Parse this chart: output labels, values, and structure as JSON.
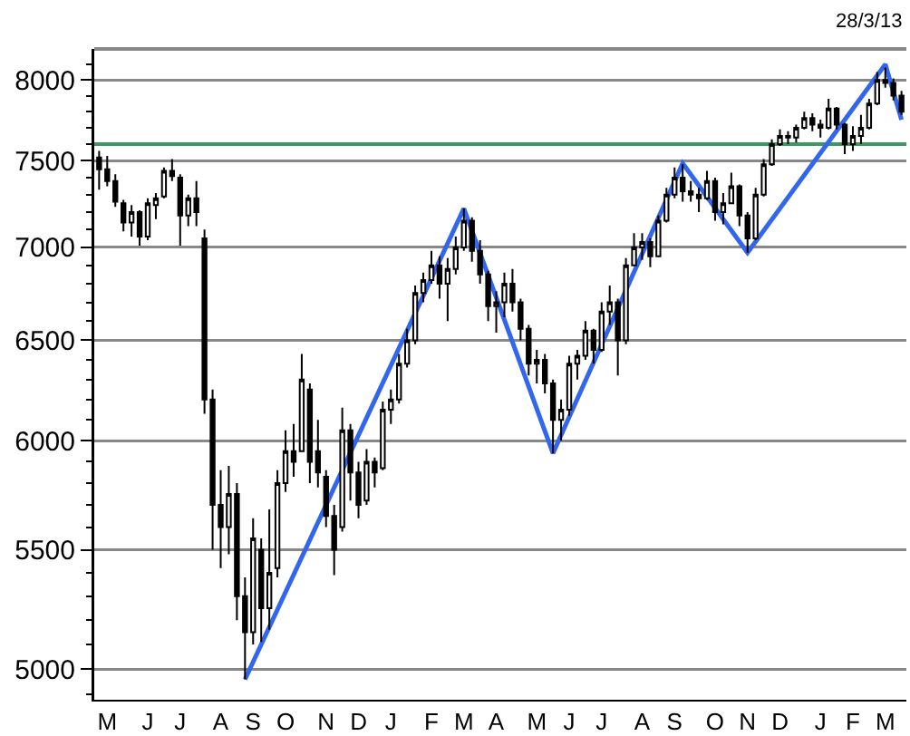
{
  "chart_data": {
    "type": "candlestick",
    "log": true,
    "grid": "y",
    "color": "#000000",
    "annotations": [
      "28/3/13"
    ],
    "categories": [
      null,
      "M",
      null,
      null,
      null,
      null,
      "J",
      null,
      null,
      null,
      "J",
      null,
      null,
      null,
      null,
      "A",
      null,
      null,
      null,
      "S",
      null,
      null,
      null,
      "O",
      null,
      null,
      null,
      null,
      "N",
      null,
      null,
      null,
      "D",
      null,
      null,
      null,
      "J",
      null,
      null,
      null,
      null,
      "F",
      null,
      null,
      null,
      "M",
      null,
      null,
      null,
      "A",
      null,
      null,
      null,
      null,
      "M",
      null,
      null,
      null,
      "J",
      null,
      null,
      null,
      "J",
      null,
      null,
      null,
      null,
      "A",
      null,
      null,
      null,
      "S",
      null,
      null,
      null,
      null,
      "O",
      null,
      null,
      null,
      "N",
      null,
      null,
      null,
      "D",
      null,
      null,
      null,
      null,
      "J",
      null,
      null,
      null,
      "F",
      null,
      null,
      null,
      "M",
      null,
      null
    ],
    "ylim": [
      4880,
      8200
    ],
    "yticks": [
      {
        "value": 4900,
        "label": null
      },
      5000,
      {
        "value": 5100,
        "label": null
      },
      {
        "value": 5200,
        "label": null
      },
      {
        "value": 5300,
        "label": null
      },
      {
        "value": 5400,
        "label": null
      },
      5500,
      {
        "value": 5600,
        "label": null
      },
      {
        "value": 5700,
        "label": null
      },
      {
        "value": 5800,
        "label": null
      },
      {
        "value": 5900,
        "label": null
      },
      6000,
      {
        "value": 6100,
        "label": null
      },
      {
        "value": 6200,
        "label": null
      },
      {
        "value": 6300,
        "label": null
      },
      {
        "value": 6400,
        "label": null
      },
      6500,
      {
        "value": 6600,
        "label": null
      },
      {
        "value": 6700,
        "label": null
      },
      {
        "value": 6800,
        "label": null
      },
      {
        "value": 6900,
        "label": null
      },
      7000,
      {
        "value": 7100,
        "label": null
      },
      {
        "value": 7200,
        "label": null
      },
      {
        "value": 7300,
        "label": null
      },
      {
        "value": 7400,
        "label": null
      },
      7500,
      {
        "value": 7600,
        "label": null
      },
      {
        "value": 7700,
        "label": null
      },
      {
        "value": 7800,
        "label": null
      },
      {
        "value": 7900,
        "label": null
      },
      8000,
      {
        "value": 8100,
        "label": null
      }
    ],
    "ref_lines": [
      {
        "axis": "y",
        "value": 7600,
        "color": "#3b9a5e"
      }
    ],
    "ohlc": [
      [
        7520,
        7560,
        7330,
        7450
      ],
      [
        7450,
        7530,
        7350,
        7380
      ],
      [
        7380,
        7420,
        7230,
        7260
      ],
      [
        7250,
        7270,
        7090,
        7140
      ],
      [
        7140,
        7240,
        7060,
        7200
      ],
      [
        7200,
        7210,
        7010,
        7060
      ],
      [
        7060,
        7280,
        7040,
        7250
      ],
      [
        7240,
        7310,
        7160,
        7280
      ],
      [
        7290,
        7460,
        7280,
        7440
      ],
      [
        7440,
        7510,
        7380,
        7410
      ],
      [
        7400,
        7420,
        7010,
        7180
      ],
      [
        7180,
        7300,
        7120,
        7280
      ],
      [
        7280,
        7380,
        7120,
        7200
      ],
      [
        7050,
        7100,
        6130,
        6200
      ],
      [
        6200,
        6250,
        5500,
        5700
      ],
      [
        5700,
        5860,
        5420,
        5600
      ],
      [
        5600,
        5880,
        5480,
        5750
      ],
      [
        5750,
        5800,
        5200,
        5300
      ],
      [
        5300,
        5380,
        4960,
        5150
      ],
      [
        5150,
        5640,
        5100,
        5550
      ],
      [
        5500,
        5550,
        5110,
        5250
      ],
      [
        5250,
        5680,
        5160,
        5400
      ],
      [
        5420,
        5860,
        5380,
        5800
      ],
      [
        5800,
        6050,
        5760,
        5950
      ],
      [
        5950,
        6080,
        5830,
        5900
      ],
      [
        5950,
        6430,
        5950,
        6300
      ],
      [
        6250,
        6280,
        5800,
        5900
      ],
      [
        5950,
        6100,
        5780,
        5850
      ],
      [
        5830,
        5860,
        5600,
        5650
      ],
      [
        5650,
        5700,
        5390,
        5500
      ],
      [
        5600,
        6160,
        5580,
        6050
      ],
      [
        6050,
        6080,
        5720,
        5850
      ],
      [
        5850,
        5900,
        5640,
        5700
      ],
      [
        5720,
        5960,
        5700,
        5900
      ],
      [
        5900,
        5920,
        5780,
        5850
      ],
      [
        5870,
        6190,
        5860,
        6150
      ],
      [
        6150,
        6250,
        6080,
        6200
      ],
      [
        6200,
        6430,
        6180,
        6380
      ],
      [
        6380,
        6560,
        6360,
        6500
      ],
      [
        6500,
        6790,
        6480,
        6750
      ],
      [
        6750,
        6860,
        6700,
        6820
      ],
      [
        6820,
        6980,
        6800,
        6900
      ],
      [
        6900,
        6950,
        6720,
        6800
      ],
      [
        6800,
        6940,
        6600,
        6880
      ],
      [
        6880,
        7060,
        6850,
        7000
      ],
      [
        7000,
        7220,
        6980,
        7150
      ],
      [
        7150,
        7170,
        6920,
        6980
      ],
      [
        6980,
        7040,
        6800,
        6850
      ],
      [
        6850,
        6870,
        6600,
        6680
      ],
      [
        6680,
        6760,
        6540,
        6700
      ],
      [
        6700,
        6860,
        6620,
        6800
      ],
      [
        6800,
        6880,
        6650,
        6700
      ],
      [
        6700,
        6720,
        6500,
        6560
      ],
      [
        6560,
        6580,
        6320,
        6380
      ],
      [
        6380,
        6450,
        6280,
        6400
      ],
      [
        6400,
        6430,
        6230,
        6280
      ],
      [
        6280,
        6300,
        5940,
        6100
      ],
      [
        6100,
        6200,
        6000,
        6150
      ],
      [
        6150,
        6420,
        6120,
        6380
      ],
      [
        6380,
        6450,
        6300,
        6420
      ],
      [
        6420,
        6600,
        6400,
        6550
      ],
      [
        6550,
        6560,
        6380,
        6450
      ],
      [
        6450,
        6700,
        6440,
        6650
      ],
      [
        6650,
        6790,
        6580,
        6700
      ],
      [
        6700,
        6720,
        6320,
        6500
      ],
      [
        6500,
        6940,
        6480,
        6900
      ],
      [
        6900,
        7080,
        6900,
        7000
      ],
      [
        7000,
        7080,
        6930,
        7030
      ],
      [
        7030,
        7050,
        6890,
        6950
      ],
      [
        6950,
        7180,
        6950,
        7150
      ],
      [
        7150,
        7340,
        7140,
        7300
      ],
      [
        7300,
        7460,
        7280,
        7400
      ],
      [
        7400,
        7480,
        7260,
        7320
      ],
      [
        7320,
        7380,
        7260,
        7300
      ],
      [
        7300,
        7340,
        7200,
        7280
      ],
      [
        7280,
        7440,
        7270,
        7380
      ],
      [
        7380,
        7400,
        7150,
        7200
      ],
      [
        7200,
        7310,
        7130,
        7250
      ],
      [
        7250,
        7430,
        7250,
        7350
      ],
      [
        7350,
        7360,
        7120,
        7180
      ],
      [
        7180,
        7200,
        6970,
        7050
      ],
      [
        7050,
        7340,
        7040,
        7300
      ],
      [
        7300,
        7510,
        7290,
        7480
      ],
      [
        7480,
        7630,
        7470,
        7600
      ],
      [
        7600,
        7690,
        7590,
        7650
      ],
      [
        7650,
        7680,
        7600,
        7640
      ],
      [
        7640,
        7720,
        7610,
        7700
      ],
      [
        7700,
        7800,
        7690,
        7760
      ],
      [
        7760,
        7790,
        7680,
        7720
      ],
      [
        7720,
        7750,
        7640,
        7700
      ],
      [
        7700,
        7880,
        7690,
        7820
      ],
      [
        7820,
        7830,
        7690,
        7720
      ],
      [
        7720,
        7730,
        7540,
        7600
      ],
      [
        7600,
        7710,
        7560,
        7650
      ],
      [
        7650,
        7780,
        7600,
        7700
      ],
      [
        7700,
        7880,
        7690,
        7850
      ],
      [
        7850,
        8050,
        7840,
        8000
      ],
      [
        8000,
        8080,
        7950,
        7980
      ],
      [
        7980,
        8010,
        7870,
        7900
      ],
      [
        7900,
        7930,
        7780,
        7800
      ]
    ],
    "series": [
      {
        "type": "line",
        "color": "#3366ee",
        "values": [
          null,
          null,
          null,
          null,
          null,
          null,
          null,
          null,
          null,
          null,
          null,
          null,
          null,
          null,
          null,
          null,
          null,
          null,
          4960,
          null,
          null,
          null,
          null,
          null,
          null,
          null,
          null,
          null,
          null,
          null,
          null,
          null,
          null,
          null,
          null,
          null,
          null,
          null,
          null,
          null,
          null,
          null,
          null,
          null,
          null,
          7220,
          null,
          null,
          null,
          null,
          null,
          null,
          null,
          null,
          null,
          null,
          5940,
          null,
          null,
          null,
          null,
          null,
          null,
          null,
          null,
          null,
          null,
          null,
          null,
          null,
          null,
          null,
          7485,
          null,
          null,
          null,
          null,
          null,
          null,
          null,
          6970,
          null,
          null,
          null,
          null,
          null,
          null,
          null,
          null,
          null,
          null,
          null,
          null,
          null,
          null,
          null,
          null,
          8100,
          null,
          7750
        ]
      }
    ]
  }
}
